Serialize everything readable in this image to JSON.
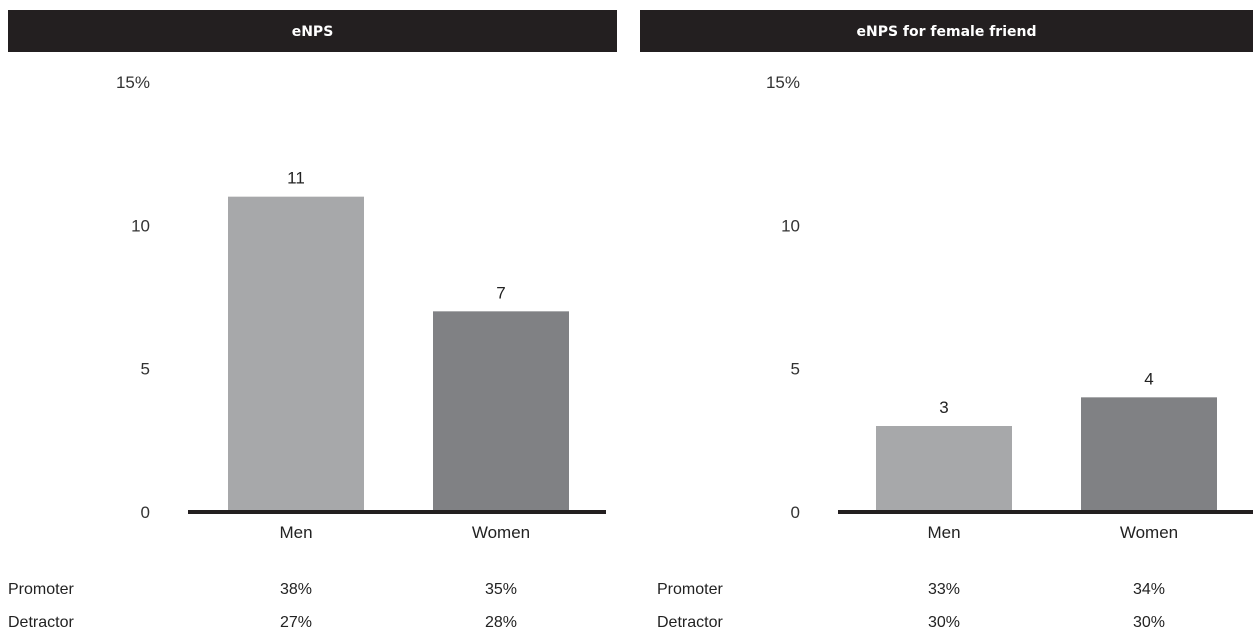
{
  "colors": {
    "header_bg": "#231f20",
    "men_bar": "#a7a8aa",
    "women_bar": "#808184",
    "baseline": "#231f20"
  },
  "chart_data": [
    {
      "type": "bar",
      "title": "eNPS",
      "categories": [
        "Men",
        "Women"
      ],
      "values": [
        11,
        7
      ],
      "value_labels": [
        "11",
        "7"
      ],
      "ylim": [
        0,
        15
      ],
      "yticks": [
        0,
        5,
        10,
        15
      ],
      "ytick_labels": [
        "0",
        "5",
        "10",
        "15%"
      ],
      "grid": false,
      "table": {
        "rows": [
          {
            "label": "Promoter",
            "values": [
              "38%",
              "35%"
            ]
          },
          {
            "label": "Detractor",
            "values": [
              "27%",
              "28%"
            ]
          }
        ]
      }
    },
    {
      "type": "bar",
      "title": "eNPS for female friend",
      "categories": [
        "Men",
        "Women"
      ],
      "values": [
        3,
        4
      ],
      "value_labels": [
        "3",
        "4"
      ],
      "ylim": [
        0,
        15
      ],
      "yticks": [
        0,
        5,
        10,
        15
      ],
      "ytick_labels": [
        "0",
        "5",
        "10",
        "15%"
      ],
      "grid": false,
      "table": {
        "rows": [
          {
            "label": "Promoter",
            "values": [
              "33%",
              "34%"
            ]
          },
          {
            "label": "Detractor",
            "values": [
              "30%",
              "30%"
            ]
          }
        ]
      }
    }
  ]
}
